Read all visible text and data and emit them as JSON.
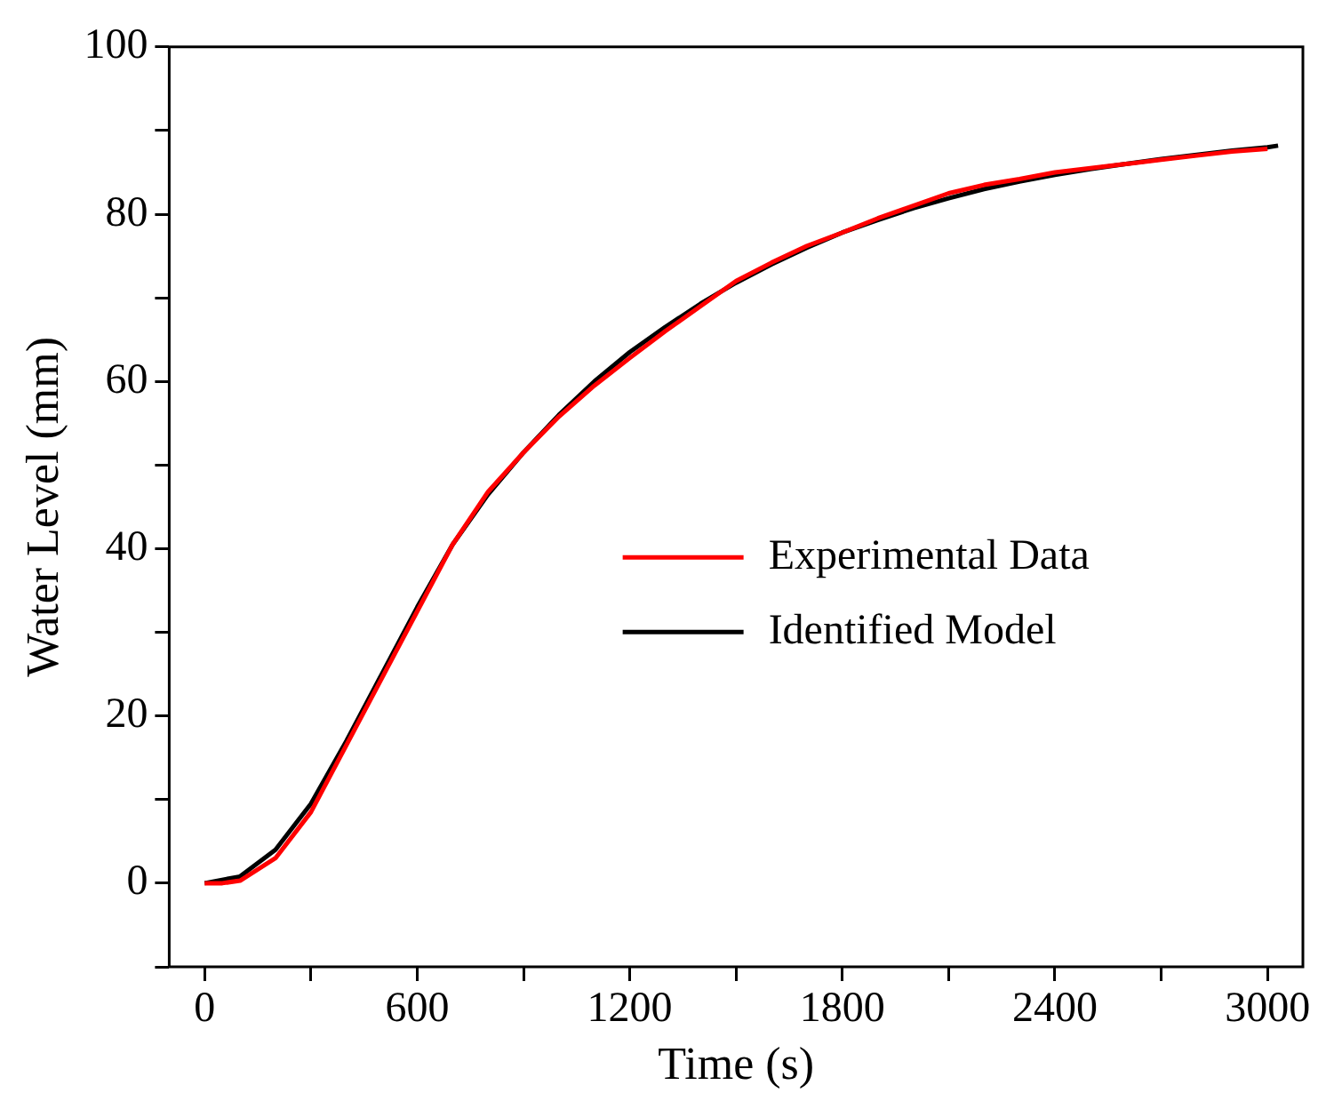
{
  "chart_data": {
    "type": "line",
    "xlabel": "Time (s)",
    "ylabel": "Water Level (mm)",
    "xlim": [
      -100,
      3100
    ],
    "ylim": [
      -10,
      100
    ],
    "xticks": [
      0,
      {
        "value": 300,
        "label": null
      },
      600,
      {
        "value": 900,
        "label": null
      },
      1200,
      {
        "value": 1500,
        "label": null
      },
      1800,
      {
        "value": 2100,
        "label": null
      },
      2400,
      {
        "value": 2700,
        "label": null
      },
      3000
    ],
    "yticks": [
      {
        "value": -10,
        "label": null
      },
      0,
      {
        "value": 10,
        "label": null
      },
      20,
      {
        "value": 30,
        "label": null
      },
      40,
      {
        "value": 50,
        "label": null
      },
      60,
      {
        "value": 70,
        "label": null
      },
      80,
      {
        "value": 90,
        "label": null
      },
      100
    ],
    "grid": false,
    "legend": "right",
    "marker": "none",
    "line_style": "solid",
    "series": [
      {
        "name": "Experimental Data",
        "color": "#ff0000",
        "x": [
          0,
          50,
          100,
          200,
          300,
          400,
          500,
          600,
          700,
          800,
          900,
          1000,
          1100,
          1200,
          1300,
          1400,
          1500,
          1600,
          1700,
          1800,
          1900,
          2000,
          2100,
          2200,
          2300,
          2400,
          2500,
          2600,
          2700,
          2800,
          2900,
          3000
        ],
        "values": [
          0,
          0,
          0.3,
          3,
          8.5,
          16.5,
          24.5,
          32.5,
          40.5,
          46.8,
          51.5,
          55.8,
          59.5,
          62.8,
          66,
          69,
          72,
          74.2,
          76.2,
          77.8,
          79.5,
          81,
          82.5,
          83.5,
          84.2,
          85,
          85.5,
          86,
          86.5,
          87,
          87.5,
          87.8
        ]
      },
      {
        "name": "Identified Model",
        "color": "#000000",
        "x": [
          0,
          100,
          200,
          300,
          400,
          500,
          600,
          700,
          800,
          900,
          1000,
          1100,
          1200,
          1300,
          1400,
          1500,
          1600,
          1700,
          1800,
          1900,
          2000,
          2100,
          2200,
          2300,
          2400,
          2500,
          2600,
          2700,
          2800,
          2900,
          3000,
          3030
        ],
        "values": [
          0,
          0.8,
          4,
          9.5,
          17,
          25,
          33,
          40.5,
          46.5,
          51.5,
          56,
          60,
          63.5,
          66.5,
          69.3,
          71.8,
          74,
          76,
          77.8,
          79.3,
          80.7,
          81.9,
          83,
          83.9,
          84.7,
          85.4,
          86,
          86.6,
          87.1,
          87.6,
          88,
          88.2
        ]
      }
    ]
  }
}
